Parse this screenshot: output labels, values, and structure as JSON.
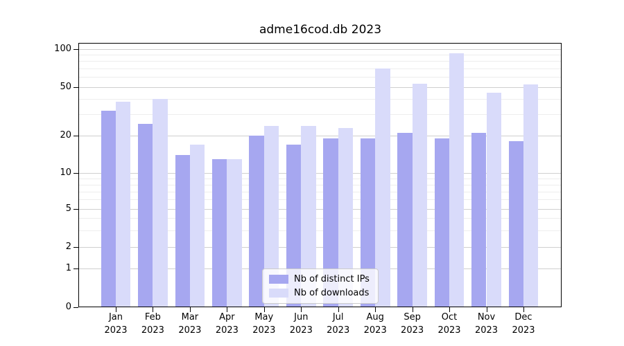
{
  "title": "adme16cod.db 2023",
  "chart_data": {
    "type": "bar",
    "title": "adme16cod.db 2023",
    "categories": [
      "Jan",
      "Feb",
      "Mar",
      "Apr",
      "May",
      "Jun",
      "Jul",
      "Aug",
      "Sep",
      "Oct",
      "Nov",
      "Dec"
    ],
    "xtick_year": "2023",
    "series": [
      {
        "name": "Nb of distinct IPs",
        "color": "#a6a7f0",
        "values": [
          32,
          25,
          14,
          13,
          20,
          17,
          19,
          19,
          21,
          19,
          21,
          18
        ]
      },
      {
        "name": "Nb of downloads",
        "color": "#d9dbfa",
        "values": [
          38,
          40,
          17,
          13,
          24,
          24,
          23,
          70,
          53,
          92,
          45,
          52
        ]
      }
    ],
    "xlabel": "",
    "ylabel": "",
    "yscale": "log",
    "yticks": [
      0,
      1,
      2,
      5,
      10,
      20,
      50,
      100
    ],
    "minor_yticks": [
      3,
      4,
      6,
      7,
      8,
      9,
      30,
      40,
      60,
      70,
      80,
      90
    ],
    "ylim": [
      0,
      112
    ],
    "grid": true,
    "legend_position": "lower center, inside plot"
  }
}
